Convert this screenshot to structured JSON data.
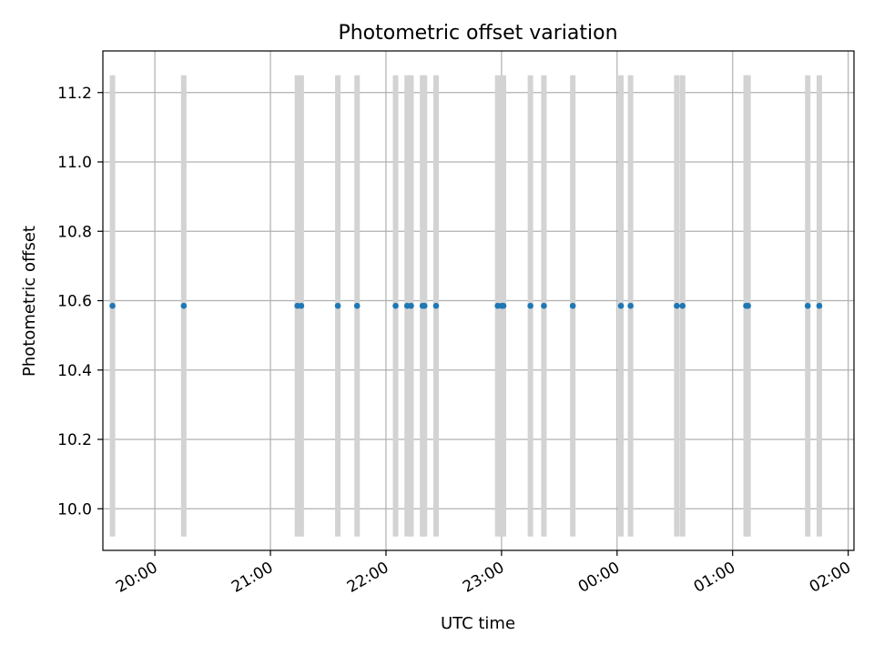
{
  "chart_data": {
    "type": "scatter",
    "title": "Photometric offset variation",
    "xlabel": "UTC time",
    "ylabel": "Photometric offset",
    "x_axis_type": "time",
    "xlim": [
      "19:33",
      "02:03"
    ],
    "ylim": [
      9.88,
      11.32
    ],
    "grid": true,
    "x_ticks": [
      "20:00",
      "21:00",
      "22:00",
      "23:00",
      "00:00",
      "01:00",
      "02:00"
    ],
    "y_ticks": [
      "10.0",
      "10.2",
      "10.4",
      "10.6",
      "10.8",
      "11.0",
      "11.2"
    ],
    "series": [
      {
        "color": "#1f77b4",
        "error_color": "#d3d3d3",
        "y_error": 0.665,
        "x": [
          "19:38",
          "20:15",
          "21:14",
          "21:16",
          "21:35",
          "21:45",
          "22:05",
          "22:11",
          "22:13",
          "22:19",
          "22:20",
          "22:26",
          "22:58",
          "23:00",
          "23:01",
          "23:15",
          "23:22",
          "23:37",
          "00:02",
          "00:07",
          "00:31",
          "00:34",
          "01:07",
          "01:08",
          "01:39",
          "01:45"
        ],
        "y": [
          10.585,
          10.585,
          10.585,
          10.585,
          10.585,
          10.585,
          10.585,
          10.585,
          10.585,
          10.585,
          10.585,
          10.585,
          10.585,
          10.585,
          10.585,
          10.585,
          10.585,
          10.585,
          10.585,
          10.585,
          10.585,
          10.585,
          10.585,
          10.585,
          10.585,
          10.585
        ]
      }
    ]
  }
}
